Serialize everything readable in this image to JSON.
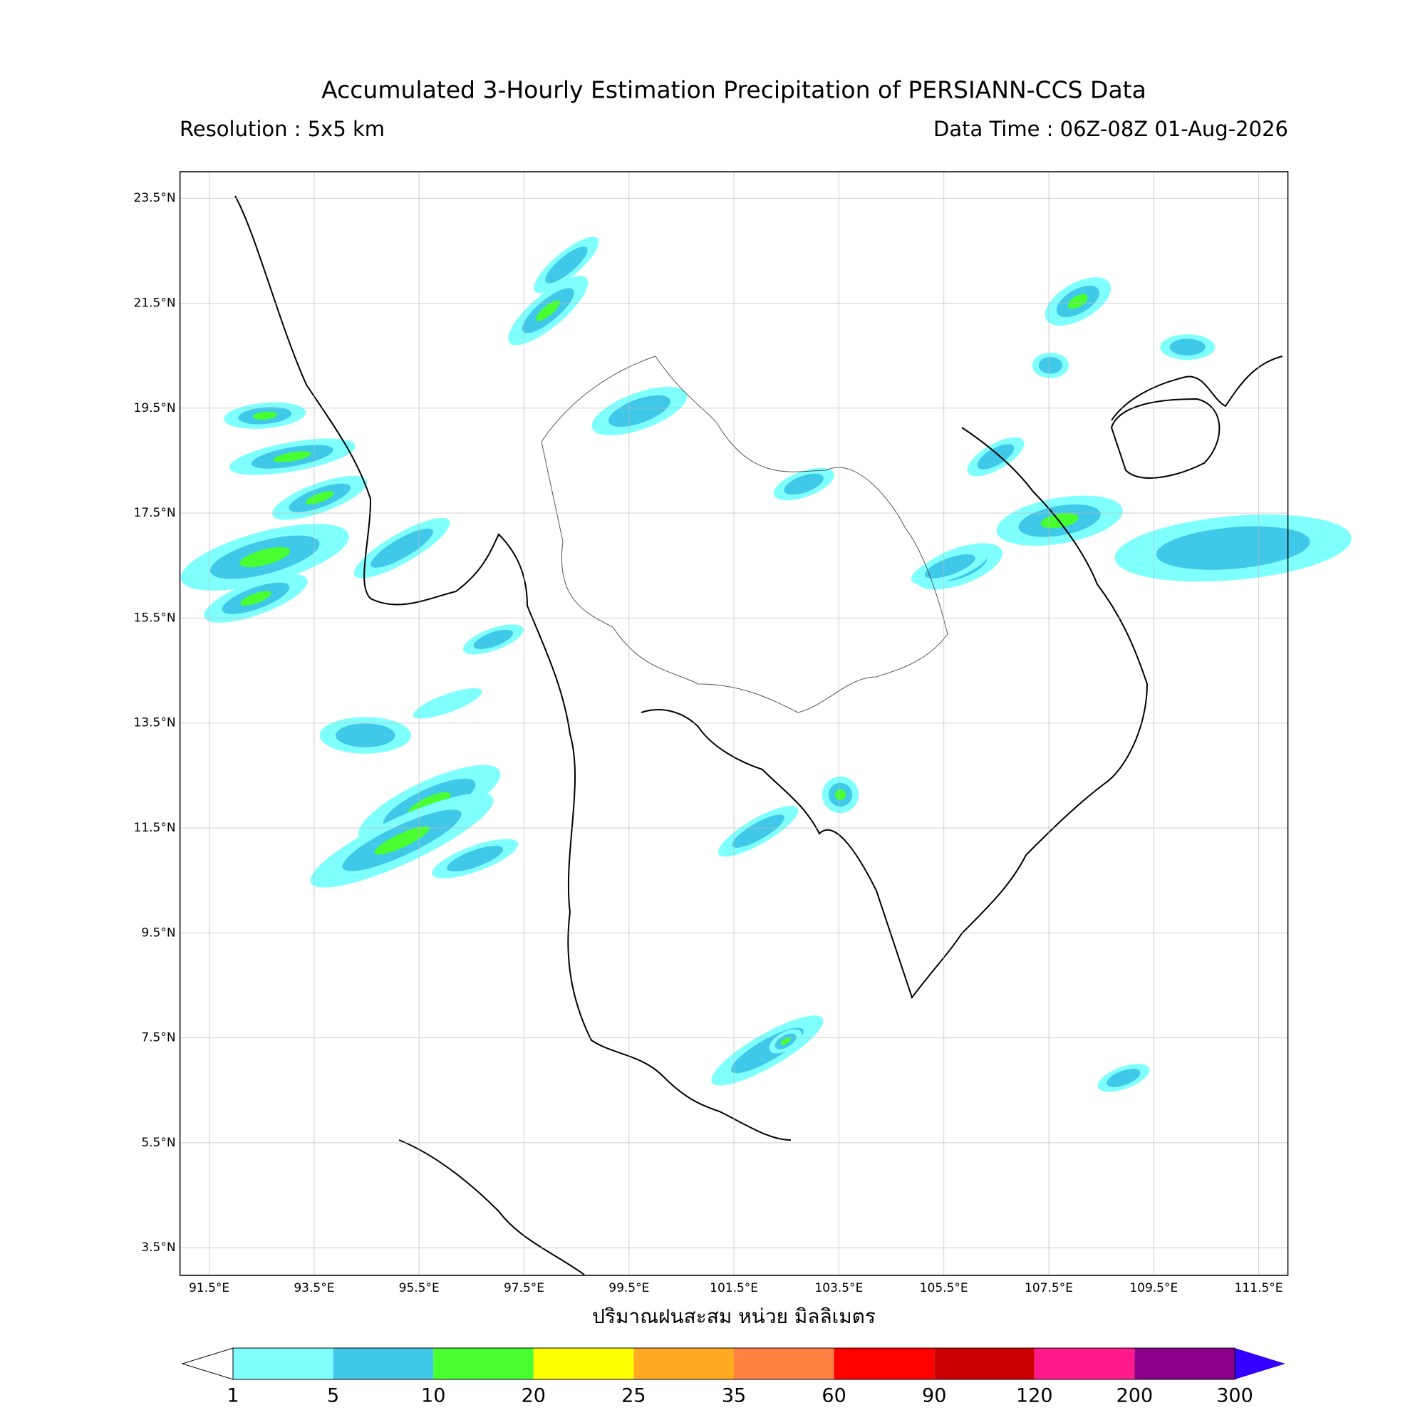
{
  "header": {
    "title": "Accumulated 3-Hourly Estimation Precipitation of PERSIANN-CCS Data",
    "resolution": "Resolution : 5x5 km",
    "data_time": "Data Time : 06Z-08Z 01-Aug-2026"
  },
  "map": {
    "lat_labels": [
      "23.5°N",
      "21.5°N",
      "19.5°N",
      "17.5°N",
      "15.5°N",
      "13.5°N",
      "11.5°N",
      "9.5°N",
      "7.5°N",
      "5.5°N",
      "3.5°N"
    ],
    "lon_labels": [
      "91.5°E",
      "93.5°E",
      "95.5°E",
      "97.5°E",
      "99.5°E",
      "101.5°E",
      "103.5°E",
      "105.5°E",
      "107.5°E",
      "109.5°E",
      "111.5°E"
    ],
    "xlabel": "ปริมาณฝนสะสม หน่วย มิลลิเมตร"
  },
  "colorbar": {
    "levels": [
      1,
      5,
      10,
      20,
      25,
      35,
      60,
      90,
      120,
      200,
      300
    ],
    "colors": [
      "#80ffff",
      "#40c8e8",
      "#48ff30",
      "#ffff00",
      "#ffaa20",
      "#ff8040",
      "#ff0000",
      "#cc0000",
      "#ff1a8c",
      "#8b008b"
    ],
    "under_color": "#ffffff",
    "over_color": "#3300ff"
  }
}
